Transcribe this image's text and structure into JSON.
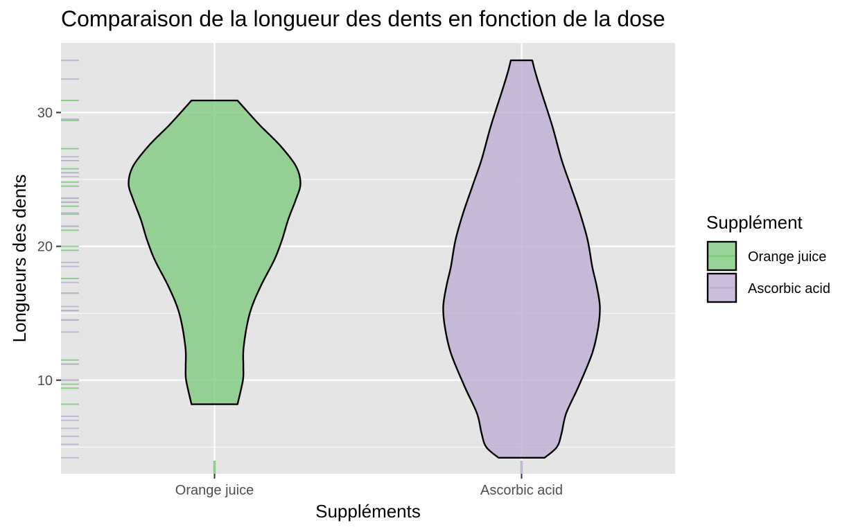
{
  "chart_data": {
    "type": "violin",
    "title": "Comparaison de la longueur des dents en fonction de la dose",
    "xlabel": "Suppléments",
    "ylabel": "Longueurs des dents",
    "ylim": [
      3.0,
      35.2
    ],
    "yticks": [
      10,
      20,
      30
    ],
    "yticks_minor": [
      5,
      15,
      25
    ],
    "categories": [
      "Orange juice",
      "Ascorbic acid"
    ],
    "grid": true,
    "legend": {
      "title": "Supplément",
      "position": "right",
      "entries": [
        {
          "label": "Orange juice",
          "color": "#7FC97F"
        },
        {
          "label": "Ascorbic acid",
          "color": "#BEAED4"
        }
      ]
    },
    "colors": {
      "Orange juice": "#7FC97F",
      "Ascorbic acid": "#BEAED4",
      "panel_background": "#e5e5e5",
      "grid": "#ffffff",
      "outline": "#000000"
    },
    "series": [
      {
        "name": "Orange juice",
        "min": 8.2,
        "max": 30.9,
        "density_profile": [
          {
            "y": 8.2,
            "w": 0.15
          },
          {
            "y": 10.0,
            "w": 0.185
          },
          {
            "y": 11.0,
            "w": 0.188
          },
          {
            "y": 12.5,
            "w": 0.19
          },
          {
            "y": 15.0,
            "w": 0.23
          },
          {
            "y": 17.0,
            "w": 0.3
          },
          {
            "y": 19.0,
            "w": 0.39
          },
          {
            "y": 20.5,
            "w": 0.44
          },
          {
            "y": 22.0,
            "w": 0.48
          },
          {
            "y": 23.5,
            "w": 0.53
          },
          {
            "y": 24.7,
            "w": 0.56
          },
          {
            "y": 26.0,
            "w": 0.53
          },
          {
            "y": 27.5,
            "w": 0.43
          },
          {
            "y": 29.0,
            "w": 0.3
          },
          {
            "y": 30.0,
            "w": 0.22
          },
          {
            "y": 30.9,
            "w": 0.15
          }
        ],
        "rug": [
          8.2,
          9.4,
          9.7,
          10.0,
          11.2,
          11.5,
          14.5,
          15.2,
          16.5,
          17.6,
          19.7,
          20.0,
          21.2,
          21.5,
          22.4,
          23.0,
          23.3,
          23.6,
          24.5,
          24.8,
          25.5,
          25.8,
          26.4,
          27.3,
          29.4,
          29.5,
          30.9
        ]
      },
      {
        "name": "Ascorbic acid",
        "min": 4.2,
        "max": 33.9,
        "density_profile": [
          {
            "y": 4.2,
            "w": 0.15
          },
          {
            "y": 5.0,
            "w": 0.23
          },
          {
            "y": 6.0,
            "w": 0.26
          },
          {
            "y": 7.5,
            "w": 0.29
          },
          {
            "y": 9.5,
            "w": 0.37
          },
          {
            "y": 12.0,
            "w": 0.46
          },
          {
            "y": 14.0,
            "w": 0.5
          },
          {
            "y": 15.5,
            "w": 0.51
          },
          {
            "y": 17.0,
            "w": 0.49
          },
          {
            "y": 18.5,
            "w": 0.46
          },
          {
            "y": 20.5,
            "w": 0.43
          },
          {
            "y": 22.5,
            "w": 0.38
          },
          {
            "y": 24.5,
            "w": 0.32
          },
          {
            "y": 26.5,
            "w": 0.26
          },
          {
            "y": 29.0,
            "w": 0.2
          },
          {
            "y": 31.5,
            "w": 0.13
          },
          {
            "y": 33.0,
            "w": 0.09
          },
          {
            "y": 33.9,
            "w": 0.07
          }
        ],
        "rug": [
          4.2,
          5.2,
          5.8,
          6.4,
          7.0,
          7.3,
          10.0,
          11.2,
          13.6,
          14.5,
          15.2,
          15.5,
          16.5,
          17.3,
          18.5,
          18.8,
          21.5,
          22.5,
          23.3,
          23.6,
          25.2,
          25.5,
          26.4,
          26.7,
          29.5,
          32.5,
          33.9
        ]
      }
    ]
  }
}
